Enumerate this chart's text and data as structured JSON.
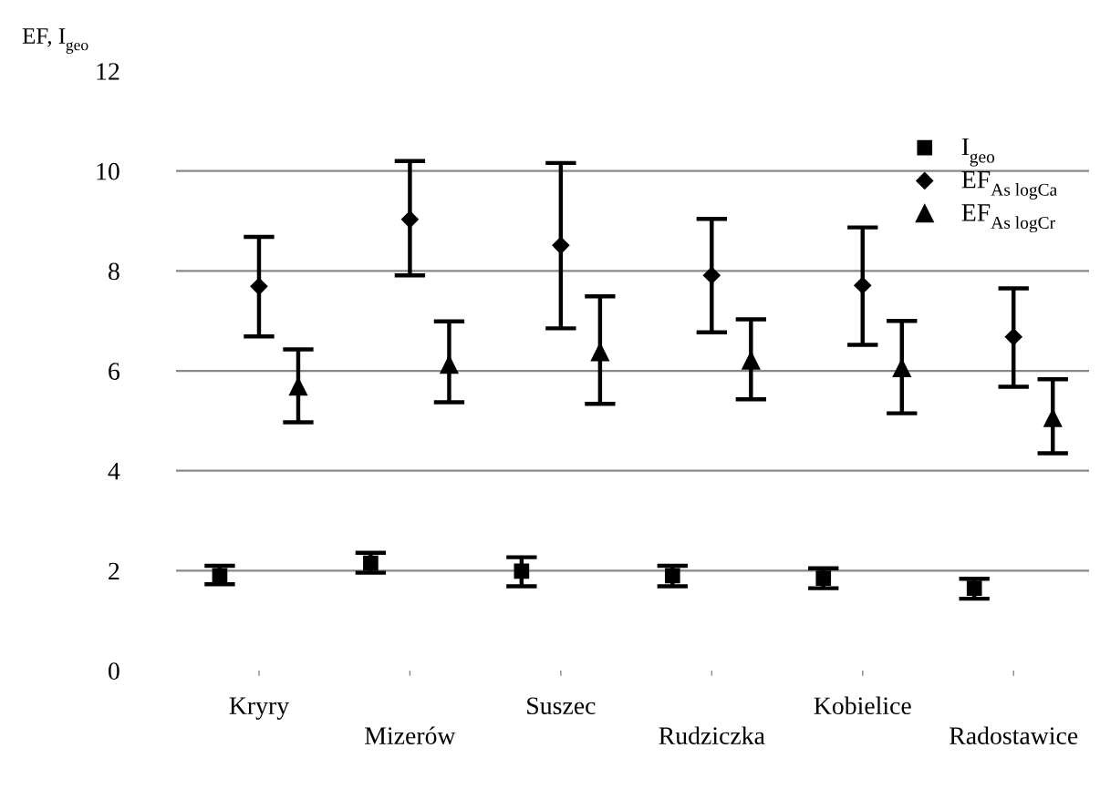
{
  "chart_data": {
    "type": "scatter",
    "ylabel": "EF, I$_{geo}$",
    "categories": [
      "Kryry",
      "Mizerów",
      "Suszec",
      "Rudziczka",
      "Kobielice",
      "Radostawice"
    ],
    "series": [
      {
        "name": "I$_{geo}$",
        "color": "#000000",
        "marker": "square",
        "values": [
          1.9,
          2.15,
          1.99,
          1.9,
          1.85,
          1.65
        ],
        "errors": [
          [
            1.73,
            2.1
          ],
          [
            1.96,
            2.36
          ],
          [
            1.69,
            2.27
          ],
          [
            1.69,
            2.1
          ],
          [
            1.65,
            2.05
          ],
          [
            1.44,
            1.84
          ]
        ]
      },
      {
        "name": "EF$_{As logCa}$",
        "color": "#000000",
        "marker": "diamond",
        "values": [
          7.69,
          9.03,
          8.51,
          7.91,
          7.71,
          6.68
        ],
        "errors": [
          [
            6.69,
            8.68
          ],
          [
            7.91,
            10.2
          ],
          [
            6.85,
            10.16
          ],
          [
            6.77,
            9.04
          ],
          [
            6.52,
            8.87
          ],
          [
            5.68,
            7.65
          ]
        ]
      },
      {
        "name": "EF$_{As logCr}$",
        "color": "#000000",
        "marker": "triangle",
        "values": [
          5.68,
          6.12,
          6.37,
          6.2,
          6.05,
          5.05
        ],
        "errors": [
          [
            4.97,
            6.43
          ],
          [
            5.37,
            6.99
          ],
          [
            5.34,
            7.49
          ],
          [
            5.43,
            7.03
          ],
          [
            5.15,
            7.0
          ],
          [
            4.35,
            5.83
          ]
        ]
      }
    ],
    "ylim": [
      0,
      12
    ],
    "yticks": [
      0,
      2,
      4,
      6,
      8,
      10,
      12
    ],
    "grid": "y",
    "legend": "top right"
  }
}
